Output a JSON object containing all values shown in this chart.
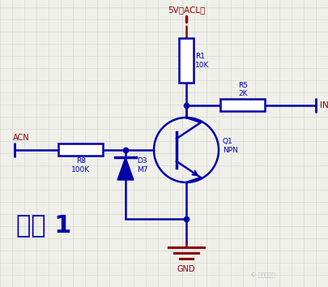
{
  "bg_color": "#f0f0eb",
  "grid_color": "#d8d8d0",
  "wire_color": "#0000AA",
  "power_color": "#8B0000",
  "title": "方案 1",
  "title_fontsize": 20,
  "watermark": "电路一点通",
  "vcc_label": "5V（ACL）",
  "gnd_label": "GND",
  "acn_label": "ACN",
  "int_label": "INT",
  "r1_label": "R1\n10K",
  "r5_label": "R5\n2K",
  "r8_label": "R8\n100K",
  "d3_label": "D3\nM7",
  "q1_label": "Q1\nNPN"
}
